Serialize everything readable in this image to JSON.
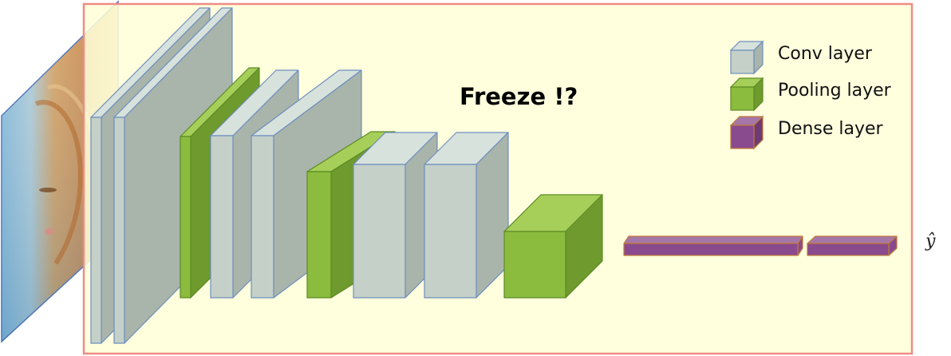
{
  "annotation": "Freeze !?",
  "output_symbol": "ŷ",
  "colors": {
    "frame_border": "#f08c84",
    "frame_fill": "#ffffd8",
    "conv_front": "#c5d0c8",
    "conv_side": "#a9b4aa",
    "conv_top": "#d8e2dc",
    "conv_edge": "#6d8fbf",
    "pool_front": "#8bbc3e",
    "pool_side": "#6e9a2e",
    "pool_top": "#a6cf5a",
    "pool_edge": "#5d8a25",
    "dense_front": "#8a4a8e",
    "dense_top": "#a577a8",
    "dense_edge": "#c07a3a"
  },
  "legend": [
    {
      "type": "conv",
      "label": "Conv layer"
    },
    {
      "type": "pool",
      "label": "Pooling layer"
    },
    {
      "type": "dense",
      "label": "Dense layer"
    }
  ],
  "layer_sequence": [
    "conv",
    "conv",
    "pool",
    "conv",
    "conv",
    "pool",
    "conv",
    "conv",
    "pool",
    "dense",
    "dense"
  ],
  "input_image": "cat-photo"
}
